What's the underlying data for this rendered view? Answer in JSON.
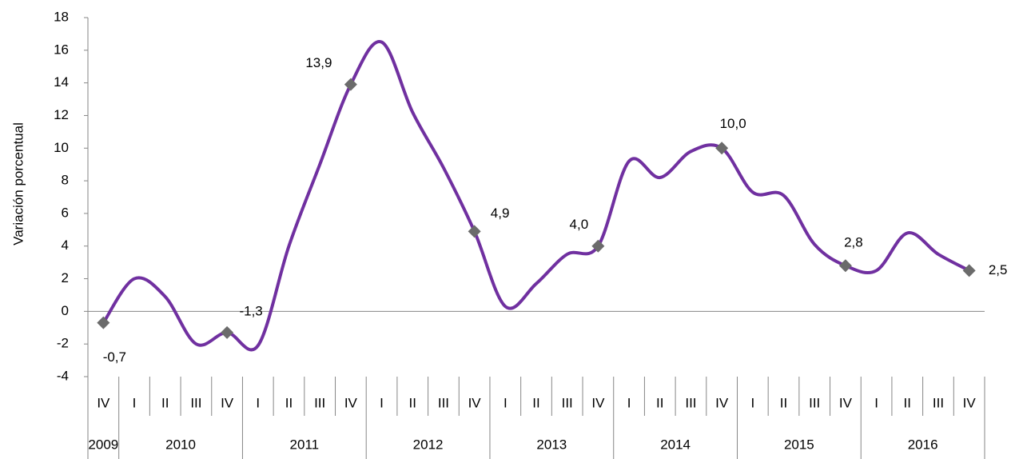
{
  "chart_data": {
    "type": "line",
    "y_label": "Variación porcentual",
    "categories": [
      "IV",
      "I",
      "II",
      "III",
      "IV",
      "I",
      "II",
      "III",
      "IV",
      "I",
      "II",
      "III",
      "IV",
      "I",
      "II",
      "III",
      "IV",
      "I",
      "II",
      "III",
      "IV",
      "I",
      "II",
      "III",
      "IV",
      "I",
      "II",
      "III",
      "IV"
    ],
    "years": [
      "2009",
      "2010",
      "2011",
      "2012",
      "2013",
      "2014",
      "2015",
      "2016"
    ],
    "values": [
      -0.7,
      2.0,
      0.9,
      -2.0,
      -1.3,
      -2.1,
      4.0,
      9.0,
      13.9,
      16.5,
      12.2,
      8.8,
      4.9,
      0.3,
      1.7,
      3.5,
      4.0,
      9.2,
      8.2,
      9.8,
      10.0,
      7.3,
      7.1,
      4.1,
      2.8,
      2.5,
      4.8,
      3.5,
      2.5
    ],
    "value_labels": [
      "-0,7",
      null,
      null,
      null,
      "-1,3",
      null,
      null,
      null,
      "13,9",
      null,
      null,
      null,
      "4,9",
      null,
      null,
      null,
      "4,0",
      null,
      null,
      null,
      "10,0",
      null,
      null,
      null,
      "2,8",
      null,
      null,
      null,
      "2,5"
    ],
    "color": "#7030a0",
    "marker_color": "#6b6b6b",
    "ylim": [
      -4,
      18
    ],
    "yticks": [
      -4,
      -2,
      0,
      2,
      4,
      6,
      8,
      10,
      12,
      14,
      16,
      18
    ]
  }
}
